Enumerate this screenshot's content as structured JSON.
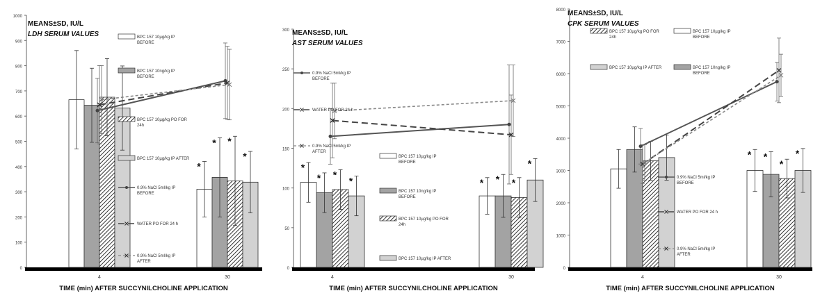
{
  "chart_data": [
    {
      "type": "bar",
      "title": "MEANS±SD, IU/L",
      "subtitle": "LDH SERUM VALUES",
      "xlabel": "TIME (min) AFTER SUCCYNILCHOLINE APPLICATION",
      "ylabel": "",
      "ylim": [
        0,
        1000
      ],
      "yticks": [
        0,
        100,
        200,
        300,
        400,
        500,
        600,
        700,
        800,
        900,
        1000
      ],
      "categories": [
        "4",
        "30"
      ],
      "bar_series": [
        {
          "name": "BPC 157 10µg/kg IP BEFORE",
          "values": [
            665,
            310
          ],
          "sd": [
            195,
            110
          ],
          "pattern": "white",
          "star": [
            false,
            true
          ]
        },
        {
          "name": "BPC 157 10ng/kg IP BEFORE",
          "values": [
            643,
            357
          ],
          "sd": [
            147,
            157
          ],
          "pattern": "gray",
          "star": [
            false,
            true
          ]
        },
        {
          "name": "BPC 157 10µg/kg PO FOR 24h",
          "values": [
            675,
            343
          ],
          "sd": [
            153,
            177
          ],
          "pattern": "hatch",
          "star": [
            false,
            true
          ]
        },
        {
          "name": "BPC 157 10µg/kg IP AFTER",
          "values": [
            632,
            338
          ],
          "sd": [
            167,
            122
          ],
          "pattern": "light",
          "star": [
            false,
            true
          ]
        }
      ],
      "line_series": [
        {
          "name": "0.9% NaCl 5ml/kg IP BEFORE",
          "values": [
            622,
            740
          ],
          "sd": [
            128,
            150
          ],
          "style": "solid"
        },
        {
          "name": "WATER PO FOR 24 h",
          "values": [
            645,
            732
          ],
          "sd": [
            155,
            145
          ],
          "style": "dash"
        },
        {
          "name": "0.9% NaCl 5ml/kg IP AFTER",
          "values": [
            665,
            725
          ],
          "sd": [
            135,
            140
          ],
          "style": "dot"
        }
      ],
      "legend_placement": "middle",
      "grid": false
    },
    {
      "type": "bar",
      "title": "MEANS±SD, IU/L",
      "subtitle": "AST SERUM VALUES",
      "xlabel": "TIME (min) AFTER SUCCYNILCHOLINE APPLICATION",
      "ylabel": "",
      "ylim": [
        0,
        300
      ],
      "yticks": [
        0,
        50,
        100,
        150,
        200,
        250,
        300
      ],
      "categories": [
        "4",
        "30"
      ],
      "bar_series": [
        {
          "name": "BPC 157 10µg/kg IP BEFORE",
          "values": [
            107,
            90
          ],
          "sd": [
            25,
            23
          ],
          "pattern": "white",
          "star": [
            true,
            true
          ]
        },
        {
          "name": "BPC 157 10ng/kg IP BEFORE",
          "values": [
            94,
            90
          ],
          "sd": [
            25,
            27
          ],
          "pattern": "gray",
          "star": [
            true,
            true
          ]
        },
        {
          "name": "BPC 157 10µg/kg PO FOR 24h",
          "values": [
            98,
            88
          ],
          "sd": [
            25,
            25
          ],
          "pattern": "hatch",
          "star": [
            true,
            true
          ]
        },
        {
          "name": "BPC 157 10µg/kg IP AFTER",
          "values": [
            90,
            110
          ],
          "sd": [
            25,
            27
          ],
          "pattern": "light",
          "star": [
            true,
            true
          ]
        }
      ],
      "line_series": [
        {
          "name": "0.9% NaCl 5ml/kg IP BEFORE",
          "values": [
            165,
            180
          ],
          "sd": [
            35,
            75
          ],
          "style": "solid"
        },
        {
          "name": "WATER PO FOR 24 h",
          "values": [
            185,
            167
          ],
          "sd": [
            47,
            50
          ],
          "style": "dash"
        },
        {
          "name": "0.9% NaCl 5ml/kg IP AFTER",
          "values": [
            197,
            210
          ],
          "sd": [
            35,
            45
          ],
          "style": "dot"
        }
      ],
      "legend_placement": "middle",
      "grid": false
    },
    {
      "type": "bar",
      "title": "MEANS±SD, IU/L",
      "subtitle": "CPK SERUM VALUES",
      "xlabel": "TIME (min) AFTER SUCCYNILCHOLINE APPLICATION",
      "ylabel": "",
      "ylim": [
        0,
        8000
      ],
      "yticks": [
        0,
        1000,
        2000,
        3000,
        4000,
        5000,
        6000,
        7000,
        8000
      ],
      "categories": [
        "4",
        "30"
      ],
      "bar_series": [
        {
          "name": "BPC 157 10µg/kg IP BEFORE",
          "values": [
            3050,
            3000
          ],
          "sd": [
            600,
            650
          ],
          "pattern": "white",
          "star": [
            false,
            true
          ]
        },
        {
          "name": "BPC 157 10ng/kg IP BEFORE",
          "values": [
            3650,
            2880
          ],
          "sd": [
            700,
            700
          ],
          "pattern": "gray",
          "star": [
            false,
            true
          ]
        },
        {
          "name": "BPC 157 10µg/kg PO FOR 24h",
          "values": [
            3300,
            2750
          ],
          "sd": [
            600,
            600
          ],
          "pattern": "hatch",
          "star": [
            false,
            true
          ]
        },
        {
          "name": "BPC 157 10µg/kg IP AFTER",
          "values": [
            3400,
            3000
          ],
          "sd": [
            700,
            680
          ],
          "pattern": "light",
          "star": [
            false,
            true
          ]
        }
      ],
      "line_series": [
        {
          "name": "0.9% NaCl 5ml/kg IP BEFORE",
          "values": [
            3750,
            5750
          ],
          "sd": [
            550,
            600
          ],
          "style": "solid"
        },
        {
          "name": "WATER PO FOR 24 h",
          "values": [
            3200,
            6100
          ],
          "sd": [
            600,
            1000
          ],
          "style": "dash"
        },
        {
          "name": "0.9% NaCl 5ml/kg IP AFTER",
          "values": [
            3250,
            5950
          ],
          "sd": [
            550,
            650
          ],
          "style": "dot"
        }
      ],
      "legend_placement": "top",
      "grid": false
    }
  ]
}
